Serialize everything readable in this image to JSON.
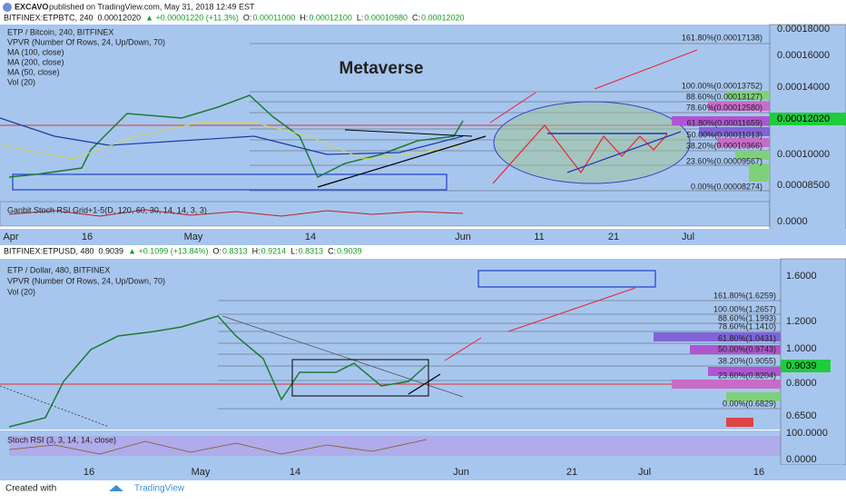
{
  "header": {
    "author": "EXCAVO",
    "published": "published on TradingView.com, May 31, 2018 12:49 EST"
  },
  "top": {
    "symbol": "BITFINEX:ETPBTC, 240",
    "last": "0.00012020",
    "change": "▲ +0.00001220 (+11.3%)",
    "o": "O:",
    "ov": "0.00011000",
    "h": "H:",
    "hv": "0.00012100",
    "l": "L:",
    "lv": "0.00010980",
    "c": "C:",
    "cv": "0.00012020",
    "legend": [
      "ETP / Bitcoin, 240, BITFINEX",
      "VPVR (Number Of Rows, 24, Up/Down, 70)",
      "MA (100, close)",
      "MA (200, close)",
      "MA (50, close)",
      "Vol (20)"
    ],
    "title": "Metaverse",
    "fib": [
      "161.80%(0.00017138)",
      "100.00%(0.00013752)",
      "88.60%(0.00013127)",
      "78.60%(0.00012580)",
      "61.80%(0.00011659)",
      "50.00%(0.00011013)",
      "38.20%(0.00010366)",
      "23.60%(0.00009567)",
      "0.00%(0.00008274)"
    ],
    "yticks": [
      "0.00018000",
      "0.00016000",
      "0.00014000",
      "0.00010000",
      "0.00008500",
      "0.0000"
    ],
    "price_tag": "0.00012020",
    "indicator": "Ganbit Stoch RSI Grid+1-5(D, 120, 60, 30, 14, 14, 3, 3)",
    "xticks": [
      "Apr",
      "16",
      "May",
      "14",
      "Jun",
      "11",
      "21",
      "Jul"
    ]
  },
  "bottom": {
    "symbol": "BITFINEX:ETPUSD, 480",
    "last": "0.9039",
    "change": "▲ +0.1099 (+13.84%)",
    "o": "O:",
    "ov": "0.8313",
    "h": "H:",
    "hv": "0.9214",
    "l": "L:",
    "lv": "0.8313",
    "c": "C:",
    "cv": "0.9039",
    "legend": [
      "ETP / Dollar, 480, BITFINEX",
      "VPVR (Number Of Rows, 24, Up/Down, 70)",
      "Vol (20)"
    ],
    "fib": [
      "161.80%(1.6259)",
      "100.00%(1.2657)",
      "88.60%(1.1993)",
      "78.60%(1.1410)",
      "61.80%(1.0431)",
      "50.00%(0.9743)",
      "38.20%(0.9055)",
      "23.60%(0.8204)",
      "0.00%(0.6829)"
    ],
    "yticks": [
      "1.6000",
      "1.2000",
      "1.0000",
      "0.8000",
      "0.6500",
      "100.0000",
      "0.0000"
    ],
    "price_tag": "0.9039",
    "indicator": "Stoch RSI (3, 3, 14, 14, close)",
    "xticks": [
      "16",
      "May",
      "14",
      "Jun",
      "21",
      "Jul",
      "16"
    ]
  },
  "footer": {
    "created": "Created with",
    "brand": "TradingView"
  }
}
